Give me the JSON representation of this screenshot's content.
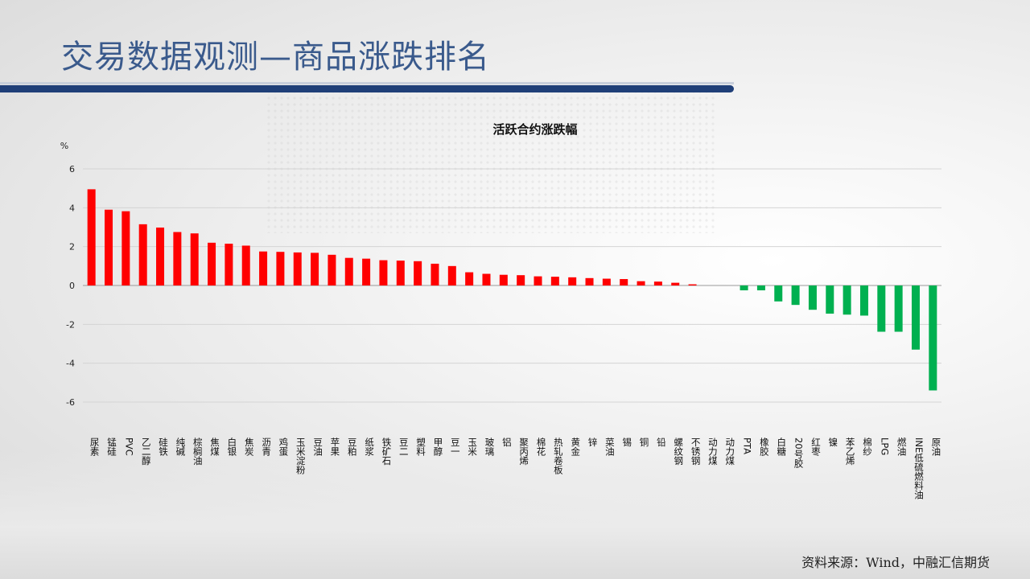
{
  "header": {
    "title": "交易数据观测—商品涨跌排名"
  },
  "chart_data": {
    "type": "bar",
    "title": "活跃合约涨跌幅",
    "ylabel": "%",
    "ylim": [
      -6,
      6
    ],
    "yticks": [
      6,
      4,
      2,
      0,
      -2,
      -4,
      -6
    ],
    "grid": true,
    "positive_color": "#ff0000",
    "negative_color": "#00b050",
    "categories": [
      "尿素",
      "锰硅",
      "PVC",
      "乙二醇",
      "硅铁",
      "纯碱",
      "棕榈油",
      "焦煤",
      "白银",
      "焦炭",
      "沥青",
      "鸡蛋",
      "玉米淀粉",
      "豆油",
      "苹果",
      "豆粕",
      "纸浆",
      "铁矿石",
      "豆二",
      "塑料",
      "甲醇",
      "豆一",
      "玉米",
      "玻璃",
      "铝",
      "聚丙烯",
      "棉花",
      "热轧卷板",
      "黄金",
      "锌",
      "菜油",
      "锡",
      "铜",
      "铅",
      "螺纹钢",
      "不锈钢",
      "动力煤",
      "动力煤",
      "PTA",
      "橡胶",
      "白糖",
      "20号胶",
      "红枣",
      "镍",
      "苯乙烯",
      "棉纱",
      "LPG",
      "燃油",
      "INE低硫燃料油",
      "原油"
    ],
    "values": [
      4.95,
      3.9,
      3.82,
      3.15,
      2.98,
      2.75,
      2.68,
      2.2,
      2.15,
      2.05,
      1.75,
      1.73,
      1.7,
      1.68,
      1.58,
      1.42,
      1.38,
      1.3,
      1.28,
      1.25,
      1.12,
      1.0,
      0.68,
      0.6,
      0.55,
      0.53,
      0.47,
      0.45,
      0.42,
      0.38,
      0.35,
      0.33,
      0.22,
      0.2,
      0.14,
      0.06,
      0,
      0,
      -0.25,
      -0.25,
      -0.82,
      -1.0,
      -1.25,
      -1.45,
      -1.5,
      -1.55,
      -2.38,
      -2.38,
      -3.3,
      -5.4
    ]
  },
  "footer": {
    "source": "资料来源：Wind，中融汇信期货"
  }
}
